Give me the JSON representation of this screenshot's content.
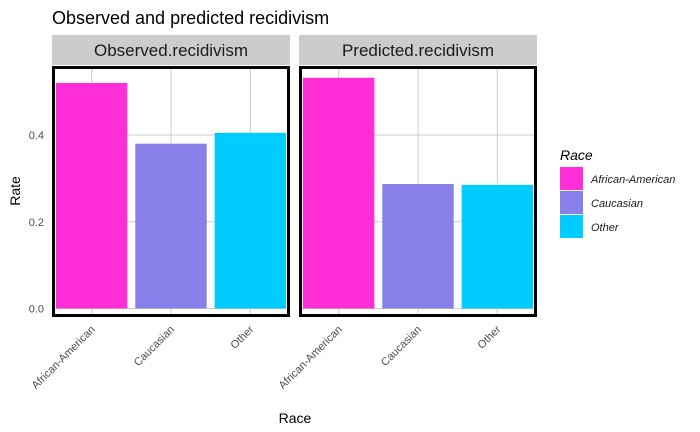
{
  "chart_data": {
    "type": "bar",
    "title": "Observed and predicted recidivism",
    "xlabel": "Race",
    "ylabel": "Rate",
    "ylim": [
      0,
      0.55
    ],
    "yticks": [
      0.0,
      0.2,
      0.4
    ],
    "ytick_labels": [
      "0.0",
      "0.2",
      "0.4"
    ],
    "grid": true,
    "legend_position": "right",
    "legend_title": "Race",
    "categories": [
      "African-American",
      "Caucasian",
      "Other"
    ],
    "colors": {
      "African-American": "#FF2ED6",
      "Caucasian": "#8880E8",
      "Other": "#00CCFF"
    },
    "panels": [
      {
        "name": "Observed.recidivism",
        "values": [
          0.52,
          0.38,
          0.405
        ]
      },
      {
        "name": "Predicted.recidivism",
        "values": [
          0.532,
          0.287,
          0.285
        ]
      }
    ]
  }
}
